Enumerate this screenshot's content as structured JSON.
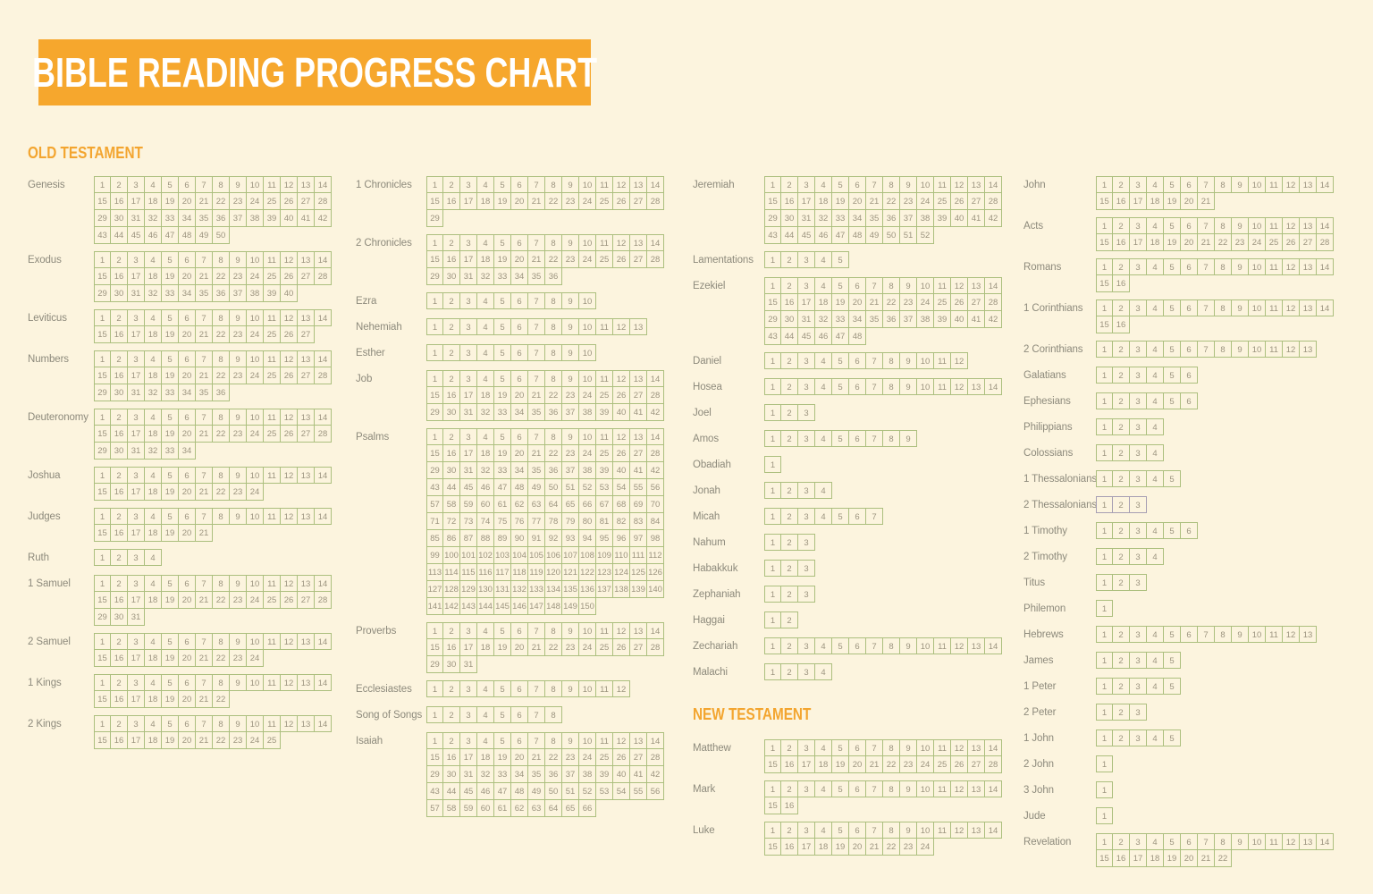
{
  "title": "BIBLE READING PROGRESS CHART",
  "sections": {
    "old_testament": "OLD TESTAMENT",
    "new_testament": "NEW TESTAMENT"
  },
  "layout": {
    "cells_per_row": 14
  },
  "colors": {
    "background": "#FCF4DE",
    "banner_orange": "#F6A72D",
    "heading_orange": "#F3A52F",
    "grid_border_green": "#ACBF7E",
    "grid_border_alt_purple": "#A79FB3",
    "cell_number_text": "#9C947F",
    "book_label_text": "#8D8A7C",
    "title_text": "#FFFFFF"
  },
  "columns": [
    {
      "items": [
        {
          "book": "Genesis",
          "chapters": 50
        },
        {
          "book": "Exodus",
          "chapters": 40
        },
        {
          "book": "Leviticus",
          "chapters": 27
        },
        {
          "book": "Numbers",
          "chapters": 36
        },
        {
          "book": "Deuteronomy",
          "chapters": 34
        },
        {
          "book": "Joshua",
          "chapters": 24
        },
        {
          "book": "Judges",
          "chapters": 21
        },
        {
          "book": "Ruth",
          "chapters": 4
        },
        {
          "book": "1 Samuel",
          "chapters": 31
        },
        {
          "book": "2 Samuel",
          "chapters": 24
        },
        {
          "book": "1 Kings",
          "chapters": 22
        },
        {
          "book": "2 Kings",
          "chapters": 25
        }
      ]
    },
    {
      "items": [
        {
          "book": "1 Chronicles",
          "chapters": 29
        },
        {
          "book": "2 Chronicles",
          "chapters": 36
        },
        {
          "book": "Ezra",
          "chapters": 10
        },
        {
          "book": "Nehemiah",
          "chapters": 13
        },
        {
          "book": "Esther",
          "chapters": 10
        },
        {
          "book": "Job",
          "chapters": 42
        },
        {
          "book": "Psalms",
          "chapters": 150
        },
        {
          "book": "Proverbs",
          "chapters": 31
        },
        {
          "book": "Ecclesiastes",
          "chapters": 12
        },
        {
          "book": "Song of Songs",
          "chapters": 8
        },
        {
          "book": "Isaiah",
          "chapters": 66
        }
      ]
    },
    {
      "items": [
        {
          "book": "Jeremiah",
          "chapters": 52
        },
        {
          "book": "Lamentations",
          "chapters": 5
        },
        {
          "book": "Ezekiel",
          "chapters": 48
        },
        {
          "book": "Daniel",
          "chapters": 12
        },
        {
          "book": "Hosea",
          "chapters": 14
        },
        {
          "book": "Joel",
          "chapters": 3
        },
        {
          "book": "Amos",
          "chapters": 9
        },
        {
          "book": "Obadiah",
          "chapters": 1
        },
        {
          "book": "Jonah",
          "chapters": 4
        },
        {
          "book": "Micah",
          "chapters": 7
        },
        {
          "book": "Nahum",
          "chapters": 3
        },
        {
          "book": "Habakkuk",
          "chapters": 3
        },
        {
          "book": "Zephaniah",
          "chapters": 3
        },
        {
          "book": "Haggai",
          "chapters": 2
        },
        {
          "book": "Zechariah",
          "chapters": 14
        },
        {
          "book": "Malachi",
          "chapters": 4
        },
        {
          "heading": "new_testament"
        },
        {
          "book": "Matthew",
          "chapters": 28
        },
        {
          "book": "Mark",
          "chapters": 16
        },
        {
          "book": "Luke",
          "chapters": 24
        }
      ]
    },
    {
      "items": [
        {
          "book": "John",
          "chapters": 21
        },
        {
          "book": "Acts",
          "chapters": 28
        },
        {
          "book": "Romans",
          "chapters": 16
        },
        {
          "book": "1 Corinthians",
          "chapters": 16
        },
        {
          "book": "2 Corinthians",
          "chapters": 13
        },
        {
          "book": "Galatians",
          "chapters": 6
        },
        {
          "book": "Ephesians",
          "chapters": 6
        },
        {
          "book": "Philippians",
          "chapters": 4
        },
        {
          "book": "Colossians",
          "chapters": 4
        },
        {
          "book": "1 Thessalonians",
          "chapters": 5
        },
        {
          "book": "2 Thessalonians",
          "chapters": 3,
          "border": "alt"
        },
        {
          "book": "1 Timothy",
          "chapters": 6
        },
        {
          "book": "2 Timothy",
          "chapters": 4
        },
        {
          "book": "Titus",
          "chapters": 3
        },
        {
          "book": "Philemon",
          "chapters": 1
        },
        {
          "book": "Hebrews",
          "chapters": 13
        },
        {
          "book": "James",
          "chapters": 5
        },
        {
          "book": "1 Peter",
          "chapters": 5
        },
        {
          "book": "2 Peter",
          "chapters": 3
        },
        {
          "book": "1 John",
          "chapters": 5
        },
        {
          "book": "2 John",
          "chapters": 1
        },
        {
          "book": "3 John",
          "chapters": 1
        },
        {
          "book": "Jude",
          "chapters": 1
        },
        {
          "book": "Revelation",
          "chapters": 22
        }
      ]
    }
  ]
}
